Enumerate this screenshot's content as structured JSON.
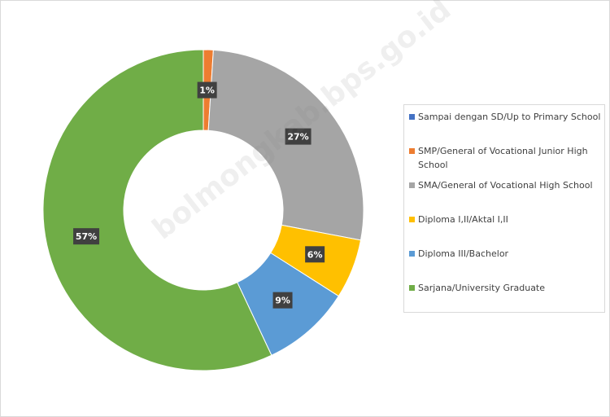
{
  "chart_data": {
    "type": "donut",
    "categories": [
      "Sampai dengan SD/Up to Primary School",
      "SMP/General of Vocational Junior High School",
      "SMA/General of Vocational High School",
      "Diploma I,II/Aktal I,II",
      "Diploma III/Bachelor",
      "Sarjana/University Graduate"
    ],
    "values": [
      0,
      1,
      27,
      6,
      9,
      57
    ],
    "value_labels": [
      null,
      "1%",
      "27%",
      "6%",
      "9%",
      "57%"
    ],
    "colors": [
      "#4472c4",
      "#ed7d31",
      "#a5a5a5",
      "#ffc000",
      "#5b9bd5",
      "#70ad47"
    ],
    "legend": "right",
    "watermark": "bolmongkab.bps.go.id"
  }
}
